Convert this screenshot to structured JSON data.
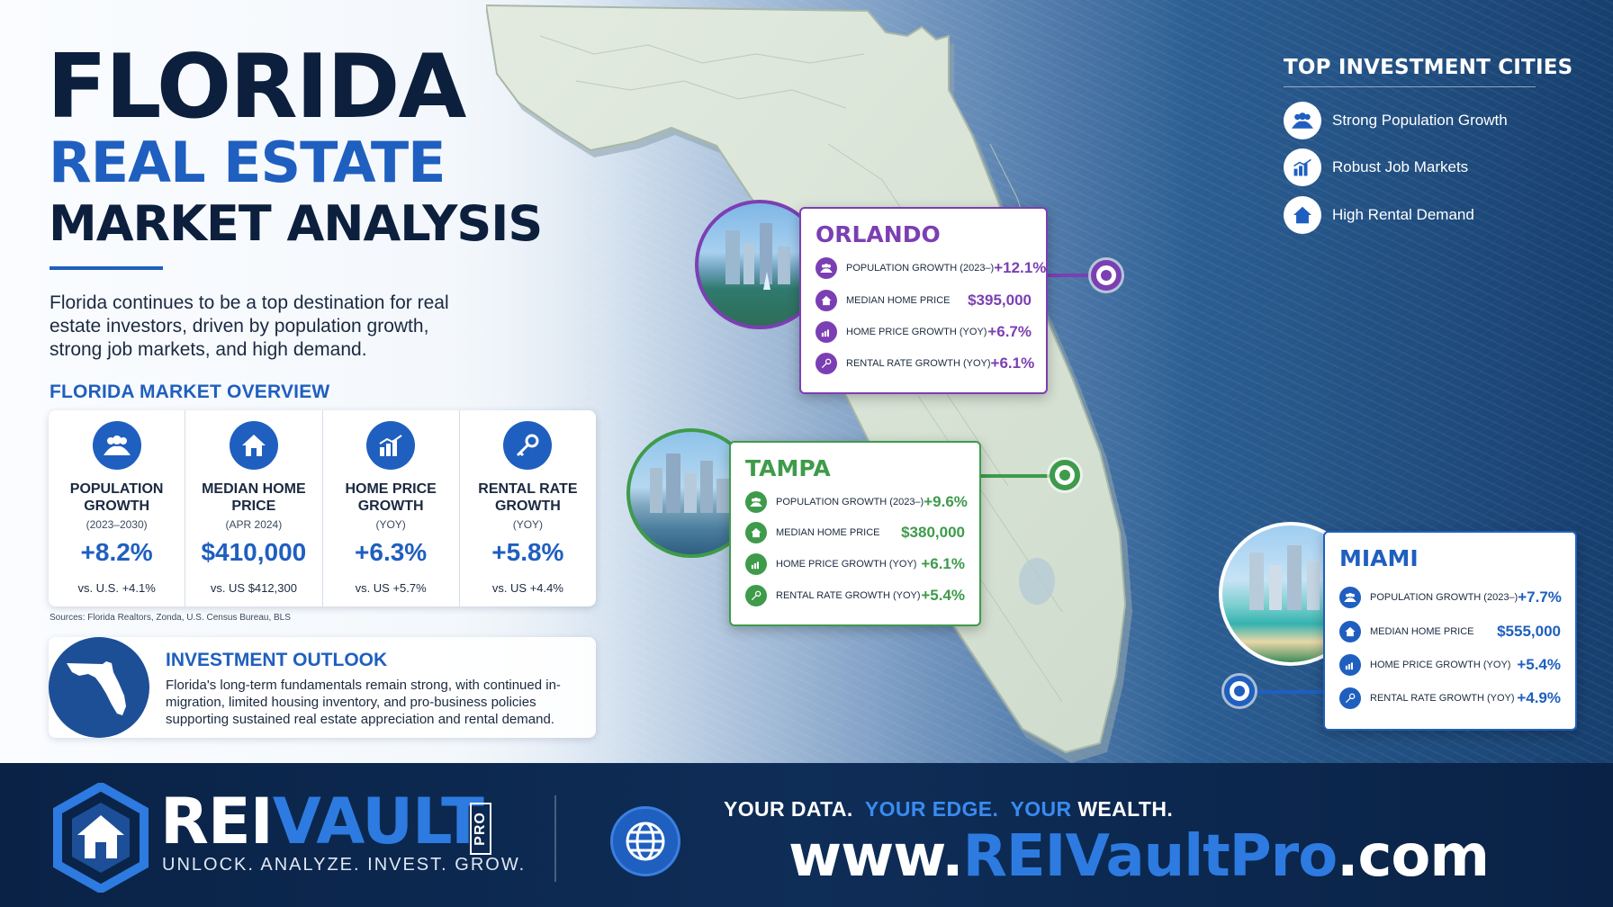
{
  "title": {
    "line1": "FLORIDA",
    "line2": "REAL ESTATE",
    "line3": "MARKET ANALYSIS"
  },
  "intro": "Florida continues to be a top destination for real estate investors, driven by population growth, strong job markets, and high demand.",
  "overview": {
    "heading": "FLORIDA MARKET OVERVIEW",
    "metrics": [
      {
        "icon": "people-icon",
        "label": "POPULATION\nGROWTH",
        "sub": "(2023–2030)",
        "value": "+8.2%",
        "compare": "vs. U.S. +4.1%"
      },
      {
        "icon": "home-icon",
        "label": "MEDIAN HOME\nPRICE",
        "sub": "(APR 2024)",
        "value": "$410,000",
        "compare": "vs. US $412,300"
      },
      {
        "icon": "chart-growth-icon",
        "label": "HOME PRICE\nGROWTH",
        "sub": "(YOY)",
        "value": "+6.3%",
        "compare": "vs. US +5.7%"
      },
      {
        "icon": "key-icon",
        "label": "RENTAL RATE\nGROWTH",
        "sub": "(YOY)",
        "value": "+5.8%",
        "compare": "vs. US +4.4%"
      }
    ],
    "sources": "Sources: Florida Realtors, Zonda, U.S. Census Bureau, BLS"
  },
  "outlook": {
    "heading": "INVESTMENT OUTLOOK",
    "text": "Florida's long-term fundamentals remain strong, with continued in-migration, limited housing inventory, and pro-business policies supporting sustained real estate appreciation and rental demand."
  },
  "legend": {
    "heading": "TOP INVESTMENT CITIES",
    "items": [
      {
        "icon": "people-icon",
        "label": "Strong Population Growth"
      },
      {
        "icon": "chart-growth-icon",
        "label": "Robust Job Markets"
      },
      {
        "icon": "home-icon",
        "label": "High Rental Demand"
      }
    ]
  },
  "cities": {
    "orlando": {
      "name": "ORLANDO",
      "color": "#7b3fb3",
      "rows": [
        {
          "label": "POPULATION GROWTH (2023–)",
          "value": "+12.1%"
        },
        {
          "label": "MEDIAN HOME PRICE",
          "value": "$395,000"
        },
        {
          "label": "HOME PRICE GROWTH (YOY)",
          "value": "+6.7%"
        },
        {
          "label": "RENTAL RATE GROWTH (YOY)",
          "value": "+6.1%"
        }
      ]
    },
    "tampa": {
      "name": "TAMPA",
      "color": "#3e9b4a",
      "rows": [
        {
          "label": "POPULATION GROWTH (2023–)",
          "value": "+9.6%"
        },
        {
          "label": "MEDIAN HOME PRICE",
          "value": "$380,000"
        },
        {
          "label": "HOME PRICE GROWTH (YOY)",
          "value": "+6.1%"
        },
        {
          "label": "RENTAL RATE GROWTH (YOY)",
          "value": "+5.4%"
        }
      ]
    },
    "miami": {
      "name": "MIAMI",
      "color": "#1f5fbf",
      "rows": [
        {
          "label": "POPULATION GROWTH (2023–)",
          "value": "+7.7%"
        },
        {
          "label": "MEDIAN HOME PRICE",
          "value": "$555,000"
        },
        {
          "label": "HOME PRICE GROWTH (YOY)",
          "value": "+5.4%"
        },
        {
          "label": "RENTAL RATE GROWTH (YOY)",
          "value": "+4.9%"
        }
      ]
    }
  },
  "footer": {
    "brand_a": "REI",
    "brand_b": "VAULT",
    "pro": "PRO",
    "tagline": "UNLOCK. ANALYZE. INVEST. GROW.",
    "slogan": {
      "a": "YOUR DATA.",
      "b": "YOUR EDGE.",
      "c": "YOUR",
      "d": "WEALTH."
    },
    "url": {
      "a": "www.",
      "b": "REIVault",
      "c": "Pro",
      "d": ".com"
    }
  }
}
